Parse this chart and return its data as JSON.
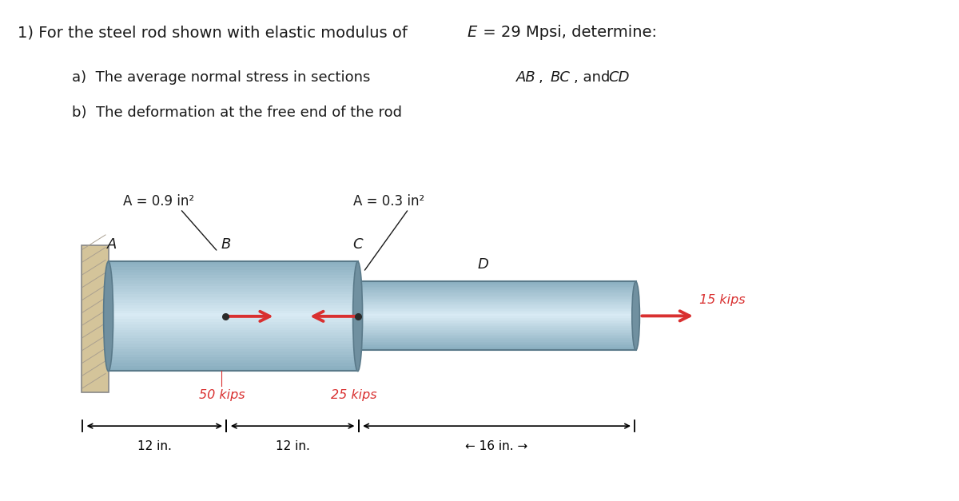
{
  "bg_color": "#ffffff",
  "text_color": "#1a1a1a",
  "force_color": "#d93030",
  "wall_color_face": "#d4c49a",
  "wall_color_edge": "#888888",
  "rod_color_light": "#c5dce8",
  "rod_color_dark": "#8aafc0",
  "rod_color_edge": "#5a7a8a",
  "rod_color_highlight": "#e0eef5",
  "label_A1": "A = 0.9 in²",
  "label_A2": "A = 0.3 in²",
  "label_A": "A",
  "label_B": "B",
  "label_C": "C",
  "label_D": "D",
  "label_50": "50 kips",
  "label_25": "25 kips",
  "label_15": "15 kips",
  "label_12a": "12 in.",
  "label_12b": "12 in.",
  "label_16": "16 in."
}
